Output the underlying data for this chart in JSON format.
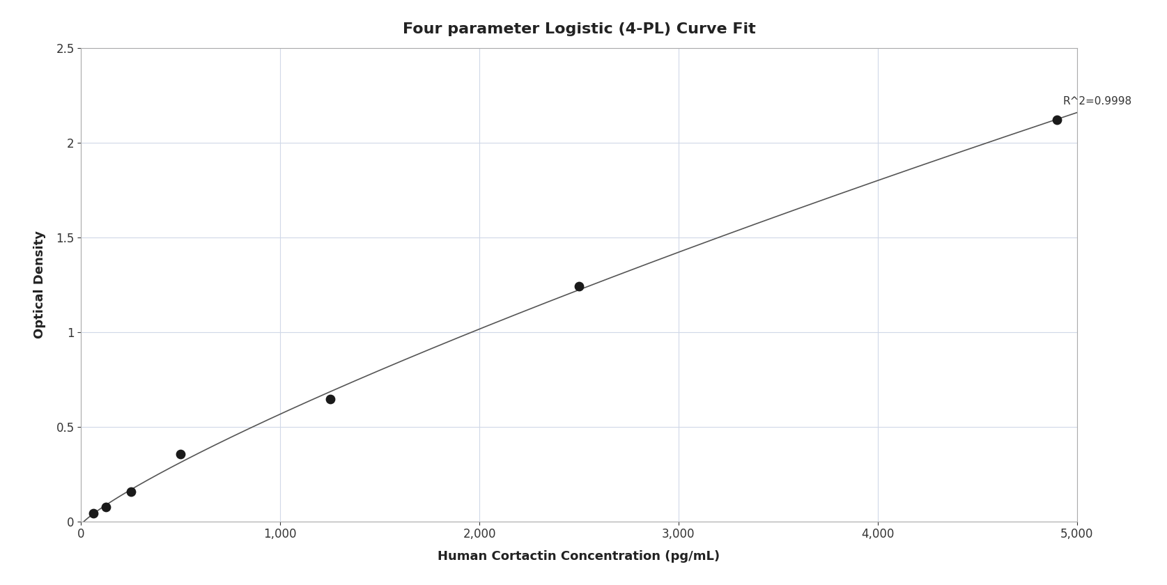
{
  "title": "Four parameter Logistic (4-PL) Curve Fit",
  "xlabel": "Human Cortactin Concentration (pg/mL)",
  "ylabel": "Optical Density",
  "r_squared": "R^2=0.9998",
  "data_x": [
    62.5,
    125,
    250,
    500,
    1250,
    2500,
    4900
  ],
  "data_y": [
    0.044,
    0.077,
    0.155,
    0.355,
    0.645,
    1.24,
    2.12
  ],
  "xlim": [
    0,
    5000
  ],
  "ylim": [
    0,
    2.5
  ],
  "xticks": [
    0,
    1000,
    2000,
    3000,
    4000,
    5000
  ],
  "yticks": [
    0,
    0.5,
    1.0,
    1.5,
    2.0,
    2.5
  ],
  "point_color": "#1a1a1a",
  "line_color": "#555555",
  "grid_color": "#d0d8e8",
  "bg_color": "#ffffff",
  "title_fontsize": 16,
  "label_fontsize": 13,
  "tick_fontsize": 12,
  "annotation_fontsize": 11,
  "point_size": 80
}
